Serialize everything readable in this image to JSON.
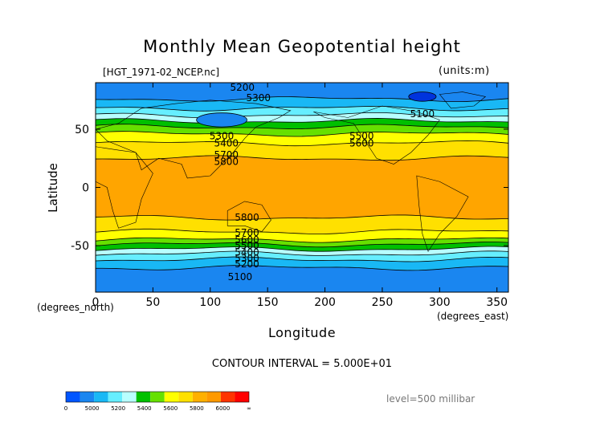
{
  "chart_data": {
    "type": "heatmap",
    "title": "Monthly Mean Geopotential height",
    "source_label": "[HGT_1971-02_NCEP.nc]",
    "units_label": "(units:m)",
    "xlabel": "Longitude",
    "ylabel": "Latitude",
    "x_unit_label": "(degrees_east)",
    "y_unit_label": "(degrees_north)",
    "xlim": [
      0,
      360
    ],
    "ylim": [
      -90,
      90
    ],
    "x_ticks": [
      0,
      50,
      100,
      150,
      200,
      250,
      300,
      350
    ],
    "y_ticks": [
      -50,
      0,
      50
    ],
    "contour_interval_label": "CONTOUR INTERVAL = 5.000E+01",
    "level_label": "level=500 millibar",
    "contour_labels": [
      {
        "text": "5200",
        "x": 128,
        "y": 86
      },
      {
        "text": "5300",
        "x": 142,
        "y": 77
      },
      {
        "text": "5100",
        "x": 285,
        "y": 63
      },
      {
        "text": "5300",
        "x": 110,
        "y": 44
      },
      {
        "text": "5400",
        "x": 114,
        "y": 38
      },
      {
        "text": "5500",
        "x": 232,
        "y": 44
      },
      {
        "text": "5600",
        "x": 232,
        "y": 38
      },
      {
        "text": "5700",
        "x": 114,
        "y": 28
      },
      {
        "text": "5800",
        "x": 114,
        "y": 22
      },
      {
        "text": "5800",
        "x": 132,
        "y": -26
      },
      {
        "text": "5700",
        "x": 132,
        "y": -39
      },
      {
        "text": "5600",
        "x": 132,
        "y": -45
      },
      {
        "text": "5500",
        "x": 132,
        "y": -50
      },
      {
        "text": "5400",
        "x": 132,
        "y": -56
      },
      {
        "text": "5300",
        "x": 132,
        "y": -61
      },
      {
        "text": "5200",
        "x": 132,
        "y": -66
      },
      {
        "text": "5100",
        "x": 126,
        "y": -77
      }
    ],
    "colorbar": {
      "labels": [
        "0",
        "5000",
        "5200",
        "5400",
        "5600",
        "5800",
        "6000",
        "∞"
      ],
      "colors": [
        "#0055ff",
        "#1a86f0",
        "#19b8f5",
        "#66eeff",
        "#b8ffff",
        "#00c000",
        "#66e000",
        "#ffff00",
        "#ffe000",
        "#ffb000",
        "#ff9900",
        "#ff3300",
        "#ff0000"
      ]
    },
    "bands": [
      {
        "lat_top": 90,
        "lat_bot": 76,
        "color": "#1a86f0"
      },
      {
        "lat_top": 76,
        "lat_bot": 68,
        "color": "#19b8f5"
      },
      {
        "lat_top": 68,
        "lat_bot": 62,
        "color": "#66eeff"
      },
      {
        "lat_top": 62,
        "lat_bot": 57,
        "color": "#b8ffff"
      },
      {
        "lat_top": 57,
        "lat_bot": 52,
        "color": "#00c000"
      },
      {
        "lat_top": 52,
        "lat_bot": 46,
        "color": "#66e000"
      },
      {
        "lat_top": 46,
        "lat_bot": 38,
        "color": "#ffff00"
      },
      {
        "lat_top": 38,
        "lat_bot": 25,
        "color": "#ffe000"
      },
      {
        "lat_top": 25,
        "lat_bot": -26,
        "color": "#ffa500"
      },
      {
        "lat_top": -26,
        "lat_bot": -38,
        "color": "#ffe000"
      },
      {
        "lat_top": -38,
        "lat_bot": -45,
        "color": "#ffff00"
      },
      {
        "lat_top": -45,
        "lat_bot": -49,
        "color": "#66e000"
      },
      {
        "lat_top": -49,
        "lat_bot": -53,
        "color": "#00c000"
      },
      {
        "lat_top": -53,
        "lat_bot": -57,
        "color": "#b8ffff"
      },
      {
        "lat_top": -57,
        "lat_bot": -62,
        "color": "#66eeff"
      },
      {
        "lat_top": -62,
        "lat_bot": -69,
        "color": "#19b8f5"
      },
      {
        "lat_top": -69,
        "lat_bot": -90,
        "color": "#1a86f0"
      }
    ],
    "features": [
      {
        "kind": "low",
        "lon": 285,
        "lat": 78,
        "rlon": 12,
        "rlat": 4,
        "color": "#0033dd"
      },
      {
        "kind": "low",
        "lon": 110,
        "lat": 58,
        "rlon": 22,
        "rlat": 6,
        "color": "#1a86f0"
      }
    ]
  }
}
